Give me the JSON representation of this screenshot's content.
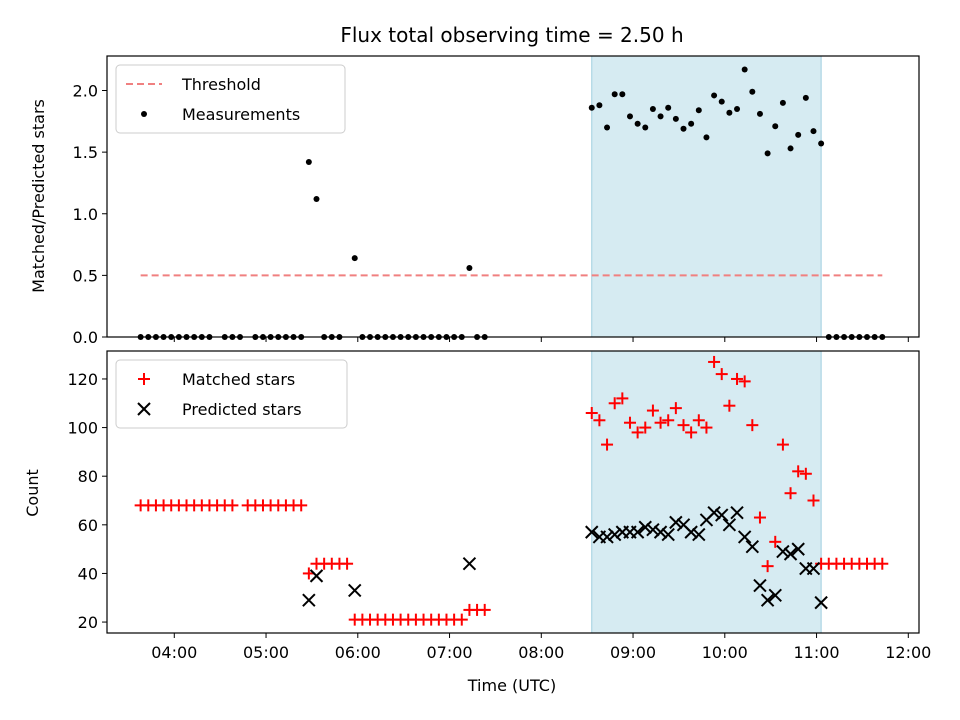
{
  "figure": {
    "title": "Flux total observing time = 2.50 h"
  },
  "colors": {
    "threshold": "#f08080",
    "measurements": "#000000",
    "matched": "#ff0000",
    "predicted": "#000000",
    "highlight": "#add8e6"
  },
  "chart_data": [
    {
      "type": "scatter",
      "panel": "top",
      "xlabel": "",
      "ylabel": "Matched/Predicted stars",
      "xlim": [
        "03:16",
        "12:07"
      ],
      "ylim": [
        0,
        2.28
      ],
      "yticks": [
        "0.0",
        "0.5",
        "1.0",
        "1.5",
        "2.0"
      ],
      "grid": false,
      "legend_position": "top-left",
      "highlight_span": [
        "08:33",
        "11:03"
      ],
      "threshold": {
        "name": "Threshold",
        "style": "dashed",
        "y": 0.5,
        "x_range": [
          "03:38",
          "11:43"
        ]
      },
      "series": [
        {
          "name": "Measurements",
          "marker": "dot",
          "points": [
            [
              "03:38",
              0
            ],
            [
              "03:43",
              0
            ],
            [
              "03:48",
              0
            ],
            [
              "03:53",
              0
            ],
            [
              "03:58",
              0
            ],
            [
              "04:03",
              0
            ],
            [
              "04:08",
              0
            ],
            [
              "04:13",
              0
            ],
            [
              "04:18",
              0
            ],
            [
              "04:23",
              0
            ],
            [
              "04:33",
              0
            ],
            [
              "04:38",
              0
            ],
            [
              "04:43",
              0
            ],
            [
              "04:53",
              0
            ],
            [
              "04:58",
              0
            ],
            [
              "05:03",
              0
            ],
            [
              "05:08",
              0
            ],
            [
              "05:13",
              0
            ],
            [
              "05:18",
              0
            ],
            [
              "05:23",
              0
            ],
            [
              "05:28",
              1.42
            ],
            [
              "05:33",
              1.12
            ],
            [
              "05:38",
              0
            ],
            [
              "05:43",
              0
            ],
            [
              "05:48",
              0
            ],
            [
              "05:58",
              0.64
            ],
            [
              "05:63",
              0
            ],
            [
              "06:08",
              0
            ],
            [
              "06:13",
              0
            ],
            [
              "06:18",
              0
            ],
            [
              "06:23",
              0
            ],
            [
              "06:28",
              0
            ],
            [
              "06:33",
              0
            ],
            [
              "06:38",
              0
            ],
            [
              "06:43",
              0
            ],
            [
              "06:48",
              0
            ],
            [
              "06:53",
              0
            ],
            [
              "06:58",
              0
            ],
            [
              "07:03",
              0
            ],
            [
              "07:08",
              0
            ],
            [
              "07:13",
              0.56
            ],
            [
              "07:18",
              0
            ],
            [
              "07:23",
              0
            ],
            [
              "08:33",
              1.86
            ],
            [
              "08:38",
              1.88
            ],
            [
              "08:43",
              1.7
            ],
            [
              "08:48",
              1.97
            ],
            [
              "08:53",
              1.97
            ],
            [
              "08:58",
              1.79
            ],
            [
              "09:03",
              1.73
            ],
            [
              "09:08",
              1.7
            ],
            [
              "09:13",
              1.85
            ],
            [
              "09:18",
              1.79
            ],
            [
              "09:23",
              1.86
            ],
            [
              "09:28",
              1.77
            ],
            [
              "09:33",
              1.69
            ],
            [
              "09:38",
              1.73
            ],
            [
              "09:43",
              1.84
            ],
            [
              "09:48",
              1.62
            ],
            [
              "09:53",
              1.96
            ],
            [
              "09:58",
              1.91
            ],
            [
              "10:03",
              1.82
            ],
            [
              "10:08",
              1.85
            ],
            [
              "10:13",
              2.17
            ],
            [
              "10:18",
              1.99
            ],
            [
              "10:23",
              1.81
            ],
            [
              "10:28",
              1.49
            ],
            [
              "10:33",
              1.71
            ],
            [
              "10:38",
              1.9
            ],
            [
              "10:43",
              1.53
            ],
            [
              "10:48",
              1.64
            ],
            [
              "10:53",
              1.94
            ],
            [
              "10:58",
              1.67
            ],
            [
              "11:03",
              1.57
            ],
            [
              "11:08",
              0
            ],
            [
              "11:13",
              0
            ],
            [
              "11:18",
              0
            ],
            [
              "11:23",
              0
            ],
            [
              "11:28",
              0
            ],
            [
              "11:33",
              0
            ],
            [
              "11:38",
              0
            ],
            [
              "11:43",
              0
            ]
          ]
        }
      ]
    },
    {
      "type": "scatter",
      "panel": "bottom",
      "xlabel": "Time (UTC)",
      "ylabel": "Count",
      "xlim": [
        "03:16",
        "12:07"
      ],
      "ylim": [
        15.5,
        131.5
      ],
      "xticks": [
        "04:00",
        "05:00",
        "06:00",
        "07:00",
        "08:00",
        "09:00",
        "10:00",
        "11:00",
        "12:00"
      ],
      "yticks": [
        "20",
        "40",
        "60",
        "80",
        "100",
        "120"
      ],
      "grid": false,
      "legend_position": "top-left",
      "highlight_span": [
        "08:33",
        "11:03"
      ],
      "series": [
        {
          "name": "Matched stars",
          "marker": "plus",
          "points": [
            [
              "03:38",
              68
            ],
            [
              "03:43",
              68
            ],
            [
              "03:48",
              68
            ],
            [
              "03:53",
              68
            ],
            [
              "03:58",
              68
            ],
            [
              "04:03",
              68
            ],
            [
              "04:08",
              68
            ],
            [
              "04:13",
              68
            ],
            [
              "04:18",
              68
            ],
            [
              "04:23",
              68
            ],
            [
              "04:28",
              68
            ],
            [
              "04:33",
              68
            ],
            [
              "04:38",
              68
            ],
            [
              "04:48",
              68
            ],
            [
              "04:53",
              68
            ],
            [
              "04:58",
              68
            ],
            [
              "05:03",
              68
            ],
            [
              "05:08",
              68
            ],
            [
              "05:13",
              68
            ],
            [
              "05:18",
              68
            ],
            [
              "05:23",
              68
            ],
            [
              "05:28",
              40
            ],
            [
              "05:33",
              44
            ],
            [
              "05:38",
              44
            ],
            [
              "05:43",
              44
            ],
            [
              "05:48",
              44
            ],
            [
              "05:53",
              44
            ],
            [
              "05:58",
              21
            ],
            [
              "06:03",
              21
            ],
            [
              "06:08",
              21
            ],
            [
              "06:13",
              21
            ],
            [
              "06:18",
              21
            ],
            [
              "06:23",
              21
            ],
            [
              "06:28",
              21
            ],
            [
              "06:33",
              21
            ],
            [
              "06:38",
              21
            ],
            [
              "06:43",
              21
            ],
            [
              "06:48",
              21
            ],
            [
              "06:53",
              21
            ],
            [
              "06:58",
              21
            ],
            [
              "07:03",
              21
            ],
            [
              "07:08",
              21
            ],
            [
              "07:13",
              25
            ],
            [
              "07:18",
              25
            ],
            [
              "07:23",
              25
            ],
            [
              "08:33",
              106
            ],
            [
              "08:38",
              103
            ],
            [
              "08:43",
              93
            ],
            [
              "08:48",
              110
            ],
            [
              "08:53",
              112
            ],
            [
              "08:58",
              102
            ],
            [
              "09:03",
              98
            ],
            [
              "09:08",
              100
            ],
            [
              "09:13",
              107
            ],
            [
              "09:18",
              102
            ],
            [
              "09:23",
              103
            ],
            [
              "09:28",
              108
            ],
            [
              "09:33",
              101
            ],
            [
              "09:38",
              98
            ],
            [
              "09:43",
              103
            ],
            [
              "09:48",
              100
            ],
            [
              "09:53",
              127
            ],
            [
              "09:58",
              122
            ],
            [
              "10:03",
              109
            ],
            [
              "10:08",
              120
            ],
            [
              "10:13",
              119
            ],
            [
              "10:18",
              101
            ],
            [
              "10:23",
              63
            ],
            [
              "10:28",
              43
            ],
            [
              "10:33",
              53
            ],
            [
              "10:38",
              93
            ],
            [
              "10:43",
              73
            ],
            [
              "10:48",
              82
            ],
            [
              "10:53",
              81
            ],
            [
              "10:58",
              70
            ],
            [
              "11:03",
              44
            ],
            [
              "11:08",
              44
            ],
            [
              "11:13",
              44
            ],
            [
              "11:18",
              44
            ],
            [
              "11:23",
              44
            ],
            [
              "11:28",
              44
            ],
            [
              "11:33",
              44
            ],
            [
              "11:38",
              44
            ],
            [
              "11:43",
              44
            ]
          ]
        },
        {
          "name": "Predicted stars",
          "marker": "x",
          "points": [
            [
              "05:28",
              29
            ],
            [
              "05:33",
              39
            ],
            [
              "05:58",
              33
            ],
            [
              "07:13",
              44
            ],
            [
              "08:33",
              57
            ],
            [
              "08:38",
              55
            ],
            [
              "08:43",
              55
            ],
            [
              "08:48",
              56
            ],
            [
              "08:53",
              57
            ],
            [
              "08:58",
              57
            ],
            [
              "09:03",
              57
            ],
            [
              "09:08",
              59
            ],
            [
              "09:13",
              58
            ],
            [
              "09:18",
              57
            ],
            [
              "09:23",
              56
            ],
            [
              "09:28",
              61
            ],
            [
              "09:33",
              60
            ],
            [
              "09:38",
              57
            ],
            [
              "09:43",
              56
            ],
            [
              "09:48",
              62
            ],
            [
              "09:53",
              65
            ],
            [
              "09:58",
              64
            ],
            [
              "10:03",
              60
            ],
            [
              "10:08",
              65
            ],
            [
              "10:13",
              55
            ],
            [
              "10:18",
              51
            ],
            [
              "10:23",
              35
            ],
            [
              "10:28",
              29
            ],
            [
              "10:33",
              31
            ],
            [
              "10:38",
              49
            ],
            [
              "10:43",
              48
            ],
            [
              "10:48",
              50
            ],
            [
              "10:53",
              42
            ],
            [
              "10:58",
              42
            ],
            [
              "11:03",
              28
            ]
          ]
        }
      ]
    }
  ]
}
